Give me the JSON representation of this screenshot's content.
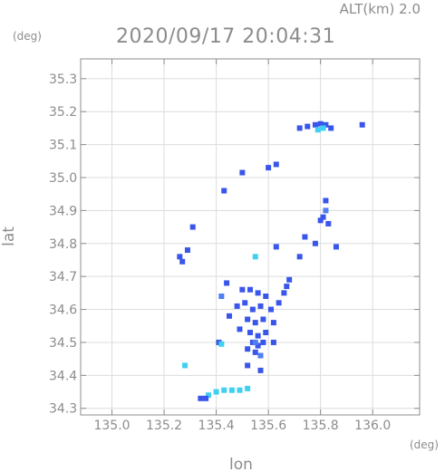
{
  "chart_data": {
    "type": "scatter",
    "header": "ALT(km) 2.0",
    "title": "2020/09/17 20:04:31",
    "y_unit": "(deg)",
    "x_unit": "(deg)",
    "xlabel": "lon",
    "ylabel": "lat",
    "xlim": [
      134.88,
      136.18
    ],
    "ylim": [
      34.28,
      35.36
    ],
    "xticks": [
      "135.0",
      "135.2",
      "135.4",
      "135.6",
      "135.8",
      "136.0"
    ],
    "yticks": [
      "34.3",
      "34.4",
      "34.5",
      "34.6",
      "34.7",
      "34.8",
      "34.9",
      "35.0",
      "35.1",
      "35.2",
      "35.3"
    ],
    "grid": true,
    "colors": {
      "high": "#3a56ea",
      "mid": "#4f7ef5",
      "low": "#3fd0f2",
      "axis": "#8c8c8c",
      "grid": "#dcdcdc"
    },
    "echoes": [
      {
        "x": 135.72,
        "y": 35.15,
        "level": "high"
      },
      {
        "x": 135.75,
        "y": 35.155,
        "level": "high"
      },
      {
        "x": 135.78,
        "y": 35.16,
        "level": "high"
      },
      {
        "x": 135.8,
        "y": 35.163,
        "level": "high"
      },
      {
        "x": 135.82,
        "y": 35.16,
        "level": "high"
      },
      {
        "x": 135.84,
        "y": 35.15,
        "level": "high"
      },
      {
        "x": 135.79,
        "y": 35.145,
        "level": "low"
      },
      {
        "x": 135.81,
        "y": 35.15,
        "level": "low"
      },
      {
        "x": 135.96,
        "y": 35.16,
        "level": "high"
      },
      {
        "x": 135.63,
        "y": 35.04,
        "level": "high"
      },
      {
        "x": 135.6,
        "y": 35.03,
        "level": "high"
      },
      {
        "x": 135.5,
        "y": 35.015,
        "level": "high"
      },
      {
        "x": 135.43,
        "y": 34.96,
        "level": "high"
      },
      {
        "x": 135.82,
        "y": 34.93,
        "level": "high"
      },
      {
        "x": 135.81,
        "y": 34.88,
        "level": "high"
      },
      {
        "x": 135.82,
        "y": 34.9,
        "level": "mid"
      },
      {
        "x": 135.8,
        "y": 34.87,
        "level": "high"
      },
      {
        "x": 135.83,
        "y": 34.86,
        "level": "high"
      },
      {
        "x": 135.31,
        "y": 34.85,
        "level": "high"
      },
      {
        "x": 135.74,
        "y": 34.82,
        "level": "high"
      },
      {
        "x": 135.78,
        "y": 34.8,
        "level": "high"
      },
      {
        "x": 135.86,
        "y": 34.79,
        "level": "high"
      },
      {
        "x": 135.63,
        "y": 34.79,
        "level": "high"
      },
      {
        "x": 135.29,
        "y": 34.78,
        "level": "high"
      },
      {
        "x": 135.26,
        "y": 34.76,
        "level": "high"
      },
      {
        "x": 135.27,
        "y": 34.745,
        "level": "high"
      },
      {
        "x": 135.55,
        "y": 34.76,
        "level": "low"
      },
      {
        "x": 135.72,
        "y": 34.76,
        "level": "high"
      },
      {
        "x": 135.68,
        "y": 34.69,
        "level": "high"
      },
      {
        "x": 135.67,
        "y": 34.67,
        "level": "high"
      },
      {
        "x": 135.66,
        "y": 34.65,
        "level": "high"
      },
      {
        "x": 135.44,
        "y": 34.68,
        "level": "high"
      },
      {
        "x": 135.42,
        "y": 34.64,
        "level": "mid"
      },
      {
        "x": 135.5,
        "y": 34.66,
        "level": "high"
      },
      {
        "x": 135.53,
        "y": 34.66,
        "level": "high"
      },
      {
        "x": 135.56,
        "y": 34.65,
        "level": "high"
      },
      {
        "x": 135.59,
        "y": 34.64,
        "level": "high"
      },
      {
        "x": 135.48,
        "y": 34.61,
        "level": "high"
      },
      {
        "x": 135.51,
        "y": 34.62,
        "level": "high"
      },
      {
        "x": 135.54,
        "y": 34.6,
        "level": "high"
      },
      {
        "x": 135.57,
        "y": 34.61,
        "level": "high"
      },
      {
        "x": 135.61,
        "y": 34.6,
        "level": "high"
      },
      {
        "x": 135.64,
        "y": 34.62,
        "level": "high"
      },
      {
        "x": 135.45,
        "y": 34.58,
        "level": "high"
      },
      {
        "x": 135.52,
        "y": 34.57,
        "level": "high"
      },
      {
        "x": 135.55,
        "y": 34.56,
        "level": "high"
      },
      {
        "x": 135.58,
        "y": 34.57,
        "level": "high"
      },
      {
        "x": 135.62,
        "y": 34.56,
        "level": "high"
      },
      {
        "x": 135.49,
        "y": 34.54,
        "level": "high"
      },
      {
        "x": 135.53,
        "y": 34.53,
        "level": "high"
      },
      {
        "x": 135.56,
        "y": 34.52,
        "level": "high"
      },
      {
        "x": 135.59,
        "y": 34.53,
        "level": "high"
      },
      {
        "x": 135.54,
        "y": 34.5,
        "level": "high"
      },
      {
        "x": 135.56,
        "y": 34.49,
        "level": "high"
      },
      {
        "x": 135.58,
        "y": 34.5,
        "level": "high"
      },
      {
        "x": 135.62,
        "y": 34.5,
        "level": "high"
      },
      {
        "x": 135.52,
        "y": 34.48,
        "level": "high"
      },
      {
        "x": 135.55,
        "y": 34.47,
        "level": "high"
      },
      {
        "x": 135.57,
        "y": 34.46,
        "level": "mid"
      },
      {
        "x": 135.55,
        "y": 34.5,
        "level": "mid"
      },
      {
        "x": 135.41,
        "y": 34.5,
        "level": "high"
      },
      {
        "x": 135.42,
        "y": 34.495,
        "level": "low"
      },
      {
        "x": 135.52,
        "y": 34.43,
        "level": "high"
      },
      {
        "x": 135.57,
        "y": 34.415,
        "level": "high"
      },
      {
        "x": 135.28,
        "y": 34.43,
        "level": "low"
      },
      {
        "x": 135.37,
        "y": 34.34,
        "level": "low"
      },
      {
        "x": 135.4,
        "y": 34.35,
        "level": "low"
      },
      {
        "x": 135.43,
        "y": 34.355,
        "level": "low"
      },
      {
        "x": 135.46,
        "y": 34.355,
        "level": "low"
      },
      {
        "x": 135.49,
        "y": 34.355,
        "level": "low"
      },
      {
        "x": 135.52,
        "y": 34.36,
        "level": "low"
      },
      {
        "x": 135.34,
        "y": 34.33,
        "level": "high"
      },
      {
        "x": 135.36,
        "y": 34.33,
        "level": "high"
      }
    ]
  }
}
